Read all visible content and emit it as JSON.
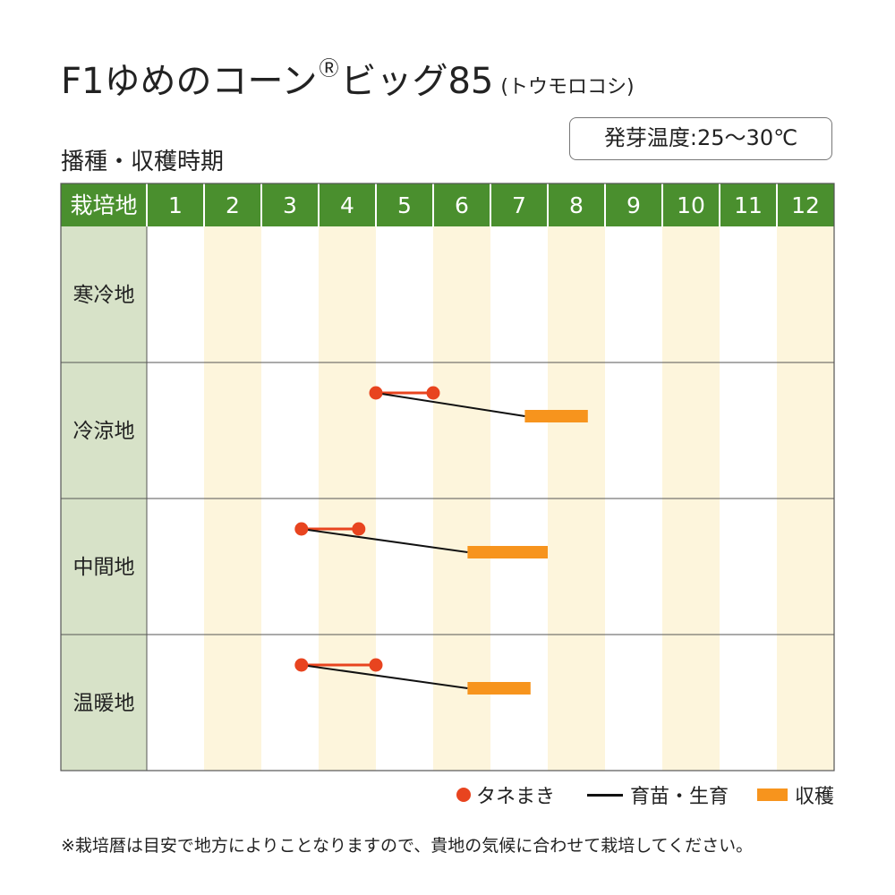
{
  "title": {
    "main": "F1ゆめのコーン",
    "reg": "R",
    "main2": "ビッグ85",
    "sub": "(トウモロコシ)"
  },
  "section_label": "播種・収穫時期",
  "badge": "発芽温度:25〜30℃",
  "chart_data": {
    "type": "table",
    "header_label": "栽培地",
    "months": [
      "1",
      "2",
      "3",
      "4",
      "5",
      "6",
      "7",
      "8",
      "9",
      "10",
      "11",
      "12"
    ],
    "rows": [
      {
        "region": "寒冷地",
        "sowing": null,
        "harvest": null
      },
      {
        "region": "冷涼地",
        "sowing": [
          5.0,
          6.0
        ],
        "harvest": [
          7.6,
          8.7
        ]
      },
      {
        "region": "中間地",
        "sowing": [
          3.7,
          4.7
        ],
        "harvest": [
          6.6,
          8.0
        ]
      },
      {
        "region": "温暖地",
        "sowing": [
          3.7,
          5.0
        ],
        "harvest": [
          6.6,
          7.7
        ]
      }
    ],
    "colors": {
      "header": "#4a8f2e",
      "region_col": "#d7e2c8",
      "stripe": "#fdf5dc",
      "sowing": "#e8441f",
      "growth": "#111111",
      "harvest": "#f7941d"
    }
  },
  "legend": {
    "sowing": "タネまき",
    "growth": "育苗・生育",
    "harvest": "収穫"
  },
  "note": "※栽培暦は目安で地方によりことなりますので、貴地の気候に合わせて栽培してください。"
}
